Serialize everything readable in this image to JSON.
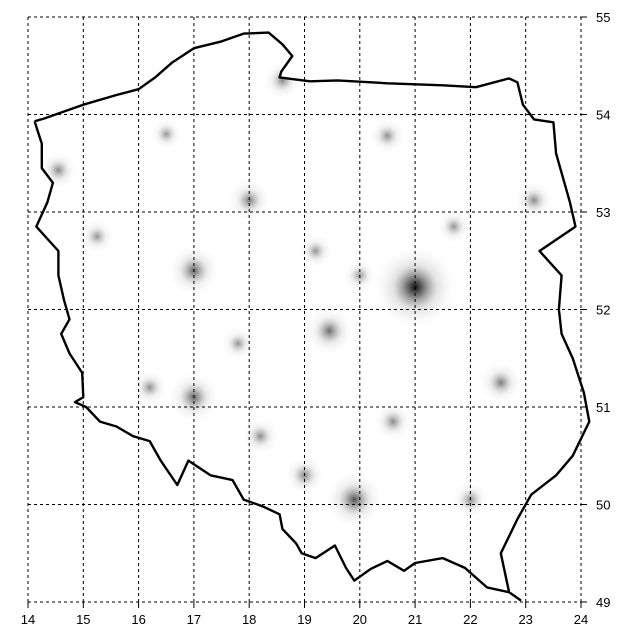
{
  "map": {
    "x_ticks": [
      "14",
      "15",
      "16",
      "17",
      "18",
      "19",
      "20",
      "21",
      "22",
      "23",
      "24"
    ],
    "y_ticks": [
      "55",
      "54",
      "53",
      "52",
      "51",
      "50",
      "49"
    ],
    "x_range": [
      14,
      24
    ],
    "y_range": [
      49,
      55
    ],
    "grid": true,
    "colors": {
      "border": "#000000",
      "grid": "#000000",
      "background": "#ffffff"
    },
    "hotspots": [
      {
        "lon": 21.0,
        "lat": 52.23,
        "intensity": 1.0
      },
      {
        "lon": 19.9,
        "lat": 50.05,
        "intensity": 0.55
      },
      {
        "lon": 17.0,
        "lat": 52.4,
        "intensity": 0.45
      },
      {
        "lon": 17.0,
        "lat": 51.1,
        "intensity": 0.45
      },
      {
        "lon": 19.45,
        "lat": 51.78,
        "intensity": 0.4
      },
      {
        "lon": 18.0,
        "lat": 53.12,
        "intensity": 0.3
      },
      {
        "lon": 22.55,
        "lat": 51.25,
        "intensity": 0.3
      },
      {
        "lon": 23.15,
        "lat": 53.12,
        "intensity": 0.22
      },
      {
        "lon": 14.55,
        "lat": 53.43,
        "intensity": 0.22
      },
      {
        "lon": 18.6,
        "lat": 54.35,
        "intensity": 0.22
      },
      {
        "lon": 20.5,
        "lat": 53.78,
        "intensity": 0.18
      },
      {
        "lon": 15.25,
        "lat": 52.75,
        "intensity": 0.15
      },
      {
        "lon": 19.0,
        "lat": 50.3,
        "intensity": 0.25
      },
      {
        "lon": 18.2,
        "lat": 50.7,
        "intensity": 0.2
      },
      {
        "lon": 20.6,
        "lat": 50.85,
        "intensity": 0.22
      },
      {
        "lon": 22.0,
        "lat": 50.05,
        "intensity": 0.2
      },
      {
        "lon": 16.2,
        "lat": 51.2,
        "intensity": 0.18
      },
      {
        "lon": 19.2,
        "lat": 52.6,
        "intensity": 0.15
      },
      {
        "lon": 21.7,
        "lat": 52.85,
        "intensity": 0.15
      },
      {
        "lon": 17.8,
        "lat": 51.65,
        "intensity": 0.14
      },
      {
        "lon": 20.0,
        "lat": 52.35,
        "intensity": 0.14
      },
      {
        "lon": 16.5,
        "lat": 53.8,
        "intensity": 0.12
      }
    ],
    "border_points": [
      [
        14.12,
        53.93
      ],
      [
        14.3,
        53.96
      ],
      [
        14.6,
        54.02
      ],
      [
        15.0,
        54.1
      ],
      [
        15.6,
        54.2
      ],
      [
        16.0,
        54.26
      ],
      [
        16.3,
        54.38
      ],
      [
        16.6,
        54.53
      ],
      [
        17.0,
        54.68
      ],
      [
        17.5,
        54.75
      ],
      [
        17.9,
        54.83
      ],
      [
        18.35,
        54.84
      ],
      [
        18.6,
        54.72
      ],
      [
        18.78,
        54.6
      ],
      [
        18.58,
        54.44
      ],
      [
        18.55,
        54.38
      ],
      [
        19.1,
        54.34
      ],
      [
        19.6,
        54.35
      ],
      [
        20.5,
        54.32
      ],
      [
        21.5,
        54.3
      ],
      [
        22.1,
        54.28
      ],
      [
        22.7,
        54.37
      ],
      [
        22.85,
        54.33
      ],
      [
        22.95,
        54.1
      ],
      [
        23.15,
        53.95
      ],
      [
        23.5,
        53.92
      ],
      [
        23.55,
        53.6
      ],
      [
        23.8,
        53.1
      ],
      [
        23.9,
        52.85
      ],
      [
        23.25,
        52.6
      ],
      [
        23.65,
        52.35
      ],
      [
        23.6,
        52.0
      ],
      [
        23.65,
        51.75
      ],
      [
        23.85,
        51.5
      ],
      [
        24.05,
        51.15
      ],
      [
        24.15,
        50.85
      ],
      [
        23.85,
        50.5
      ],
      [
        23.55,
        50.3
      ],
      [
        23.1,
        50.1
      ],
      [
        22.85,
        49.85
      ],
      [
        22.55,
        49.5
      ],
      [
        22.7,
        49.1
      ],
      [
        22.9,
        49.02
      ],
      [
        22.7,
        49.1
      ],
      [
        22.3,
        49.15
      ],
      [
        21.9,
        49.35
      ],
      [
        21.5,
        49.45
      ],
      [
        21.0,
        49.4
      ],
      [
        20.8,
        49.32
      ],
      [
        20.5,
        49.42
      ],
      [
        20.2,
        49.34
      ],
      [
        19.9,
        49.22
      ],
      [
        19.75,
        49.35
      ],
      [
        19.55,
        49.58
      ],
      [
        19.2,
        49.45
      ],
      [
        18.95,
        49.5
      ],
      [
        18.85,
        49.6
      ],
      [
        18.6,
        49.75
      ],
      [
        18.55,
        49.9
      ],
      [
        18.25,
        49.98
      ],
      [
        17.9,
        50.05
      ],
      [
        17.7,
        50.25
      ],
      [
        17.3,
        50.3
      ],
      [
        16.9,
        50.45
      ],
      [
        16.7,
        50.2
      ],
      [
        16.4,
        50.45
      ],
      [
        16.2,
        50.65
      ],
      [
        15.9,
        50.7
      ],
      [
        15.6,
        50.8
      ],
      [
        15.3,
        50.85
      ],
      [
        15.05,
        51.0
      ],
      [
        14.85,
        51.05
      ],
      [
        15.0,
        51.1
      ],
      [
        14.98,
        51.35
      ],
      [
        14.75,
        51.55
      ],
      [
        14.6,
        51.75
      ],
      [
        14.75,
        51.9
      ],
      [
        14.65,
        52.1
      ],
      [
        14.55,
        52.35
      ],
      [
        14.55,
        52.6
      ],
      [
        14.15,
        52.85
      ],
      [
        14.35,
        53.1
      ],
      [
        14.45,
        53.3
      ],
      [
        14.25,
        53.45
      ],
      [
        14.25,
        53.7
      ],
      [
        14.12,
        53.93
      ]
    ]
  }
}
